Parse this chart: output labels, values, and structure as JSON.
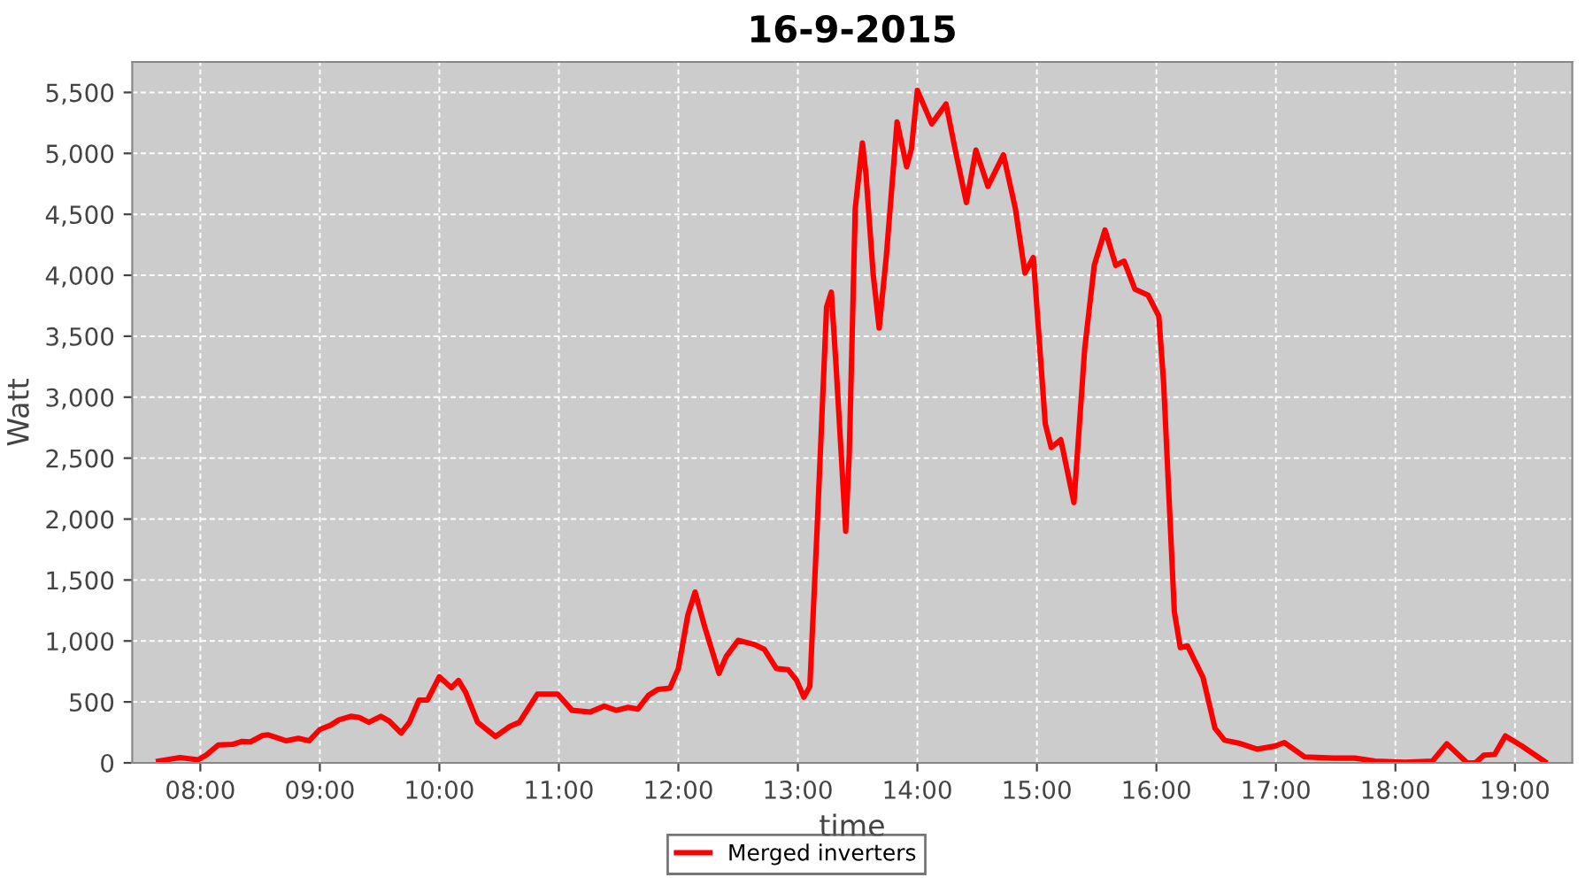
{
  "chart_data": {
    "type": "line",
    "title": "16-9-2015",
    "xlabel": "time",
    "ylabel": "Watt",
    "xlim": [
      7.43,
      19.48
    ],
    "ylim": [
      0,
      5750
    ],
    "xticks": [
      {
        "value": 8,
        "label": "08:00"
      },
      {
        "value": 9,
        "label": "09:00"
      },
      {
        "value": 10,
        "label": "10:00"
      },
      {
        "value": 11,
        "label": "11:00"
      },
      {
        "value": 12,
        "label": "12:00"
      },
      {
        "value": 13,
        "label": "13:00"
      },
      {
        "value": 14,
        "label": "14:00"
      },
      {
        "value": 15,
        "label": "15:00"
      },
      {
        "value": 16,
        "label": "16:00"
      },
      {
        "value": 17,
        "label": "17:00"
      },
      {
        "value": 18,
        "label": "18:00"
      },
      {
        "value": 19,
        "label": "19:00"
      }
    ],
    "yticks": [
      0,
      500,
      {
        "value": 1000,
        "label": "1,000"
      },
      {
        "value": 1500,
        "label": "1,500"
      },
      {
        "value": 2000,
        "label": "2,000"
      },
      {
        "value": 2500,
        "label": "2,500"
      },
      {
        "value": 3000,
        "label": "3,000"
      },
      {
        "value": 3500,
        "label": "3,500"
      },
      {
        "value": 4000,
        "label": "4,000"
      },
      {
        "value": 4500,
        "label": "4,500"
      },
      {
        "value": 5000,
        "label": "5,000"
      },
      {
        "value": 5500,
        "label": "5,500"
      }
    ],
    "grid": true,
    "legend": "bottom",
    "marker": "none",
    "line_style": "solid",
    "series": [
      {
        "name": "Merged inverters",
        "color": "#ff0000",
        "x": [
          7.65,
          7.83,
          7.98,
          8.05,
          8.15,
          8.27,
          8.35,
          8.42,
          8.52,
          8.57,
          8.72,
          8.82,
          8.91,
          9.0,
          9.09,
          9.16,
          9.26,
          9.33,
          9.41,
          9.51,
          9.58,
          9.68,
          9.75,
          9.83,
          9.9,
          10.0,
          10.1,
          10.16,
          10.22,
          10.32,
          10.47,
          10.59,
          10.67,
          10.74,
          10.82,
          10.99,
          11.11,
          11.26,
          11.38,
          11.48,
          11.58,
          11.66,
          11.75,
          11.83,
          11.93,
          12.0,
          12.08,
          12.14,
          12.22,
          12.34,
          12.4,
          12.5,
          12.64,
          12.72,
          12.82,
          12.92,
          12.99,
          13.05,
          13.1,
          13.16,
          13.24,
          13.28,
          13.32,
          13.4,
          13.43,
          13.48,
          13.54,
          13.57,
          13.63,
          13.68,
          13.74,
          13.83,
          13.91,
          13.95,
          14.0,
          14.12,
          14.24,
          14.32,
          14.41,
          14.49,
          14.59,
          14.72,
          14.82,
          14.9,
          14.97,
          15.07,
          15.12,
          15.2,
          15.31,
          15.4,
          15.48,
          15.57,
          15.66,
          15.73,
          15.82,
          15.93,
          16.02,
          16.06,
          16.15,
          16.2,
          16.26,
          16.39,
          16.49,
          16.57,
          16.69,
          16.84,
          16.99,
          17.07,
          17.24,
          17.48,
          17.66,
          17.83,
          18.08,
          18.31,
          18.43,
          18.6,
          18.67,
          18.74,
          18.83,
          18.92,
          19.06,
          19.25
        ],
        "values": [
          15,
          44,
          25,
          64,
          147,
          152,
          176,
          172,
          225,
          230,
          181,
          201,
          181,
          274,
          309,
          353,
          382,
          372,
          333,
          382,
          343,
          245,
          333,
          515,
          515,
          706,
          617,
          676,
          578,
          333,
          216,
          299,
          333,
          441,
          564,
          564,
          431,
          417,
          466,
          431,
          456,
          441,
          554,
          603,
          613,
          774,
          1215,
          1401,
          1117,
          735,
          872,
          1005,
          970,
          931,
          774,
          764,
          676,
          539,
          627,
          1901,
          3739,
          3861,
          3249,
          1901,
          2538,
          4547,
          5086,
          4827,
          4008,
          3567,
          4155,
          5258,
          4890,
          5037,
          5517,
          5243,
          5405,
          5013,
          4596,
          5027,
          4729,
          4988,
          4547,
          4018,
          4145,
          2783,
          2587,
          2651,
          2136,
          3396,
          4082,
          4371,
          4082,
          4116,
          3886,
          3837,
          3665,
          3126,
          1240,
          946,
          960,
          701,
          284,
          186,
          162,
          113,
          137,
          167,
          49,
          39,
          39,
          15,
          5,
          15,
          157,
          0,
          0,
          64,
          69,
          221,
          137,
          10
        ]
      }
    ]
  }
}
